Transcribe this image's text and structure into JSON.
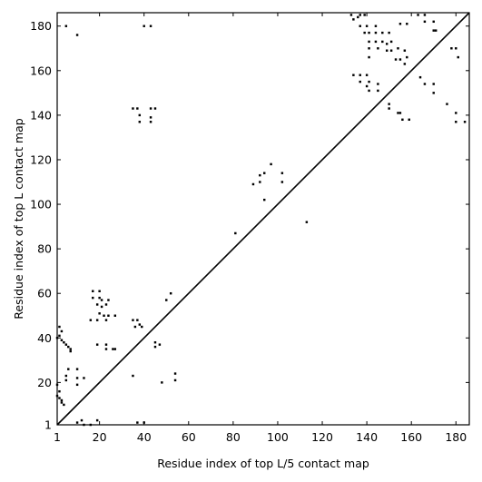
{
  "chart_data": {
    "type": "scatter",
    "title": "",
    "xlabel": "Residue index of top L/5 contact map",
    "ylabel": "Residue index of top L contact map",
    "xlim": [
      1,
      186
    ],
    "ylim": [
      1,
      186
    ],
    "xticks": [
      1,
      20,
      40,
      60,
      80,
      100,
      120,
      140,
      160,
      180
    ],
    "yticks": [
      1,
      20,
      40,
      60,
      80,
      100,
      120,
      140,
      160,
      180
    ],
    "grid": false,
    "diagonal": true,
    "marker_color": "#000000",
    "series": [
      {
        "points": [
          [
            5,
            180
          ],
          [
            10,
            176
          ],
          [
            40,
            180
          ],
          [
            43,
            180
          ],
          [
            35,
            143
          ],
          [
            37,
            143
          ],
          [
            38,
            140
          ],
          [
            38,
            137
          ],
          [
            43,
            143
          ],
          [
            45,
            143
          ],
          [
            43,
            139
          ],
          [
            43,
            137
          ],
          [
            1,
            40
          ],
          [
            2,
            41
          ],
          [
            3,
            39
          ],
          [
            4,
            38
          ],
          [
            5,
            37
          ],
          [
            6,
            36
          ],
          [
            7,
            35
          ],
          [
            7,
            34
          ],
          [
            2,
            45
          ],
          [
            3,
            43
          ],
          [
            1,
            19
          ],
          [
            2,
            16
          ],
          [
            1,
            14
          ],
          [
            2,
            13
          ],
          [
            3,
            12
          ],
          [
            3,
            11
          ],
          [
            4,
            10
          ],
          [
            5,
            21
          ],
          [
            5,
            23
          ],
          [
            6,
            26
          ],
          [
            10,
            22
          ],
          [
            10,
            19
          ],
          [
            13,
            22
          ],
          [
            10,
            26
          ],
          [
            17,
            61
          ],
          [
            17,
            58
          ],
          [
            20,
            61
          ],
          [
            20,
            58
          ],
          [
            21,
            57
          ],
          [
            19,
            55
          ],
          [
            21,
            54
          ],
          [
            23,
            55
          ],
          [
            20,
            51
          ],
          [
            22,
            50
          ],
          [
            24,
            50
          ],
          [
            24,
            57
          ],
          [
            27,
            50
          ],
          [
            16,
            48
          ],
          [
            19,
            48
          ],
          [
            23,
            48
          ],
          [
            19,
            37
          ],
          [
            23,
            37
          ],
          [
            23,
            35
          ],
          [
            26,
            35
          ],
          [
            27,
            35
          ],
          [
            35,
            48
          ],
          [
            37,
            48
          ],
          [
            36,
            45
          ],
          [
            38,
            46
          ],
          [
            39,
            45
          ],
          [
            45,
            38
          ],
          [
            45,
            36
          ],
          [
            47,
            37
          ],
          [
            35,
            23
          ],
          [
            48,
            20
          ],
          [
            50,
            57
          ],
          [
            52,
            60
          ],
          [
            54,
            24
          ],
          [
            54,
            21
          ],
          [
            10,
            2
          ],
          [
            12,
            3
          ],
          [
            13,
            1
          ],
          [
            16,
            1
          ],
          [
            19,
            3
          ],
          [
            37,
            2
          ],
          [
            40,
            2
          ],
          [
            81,
            87
          ],
          [
            89,
            109
          ],
          [
            92,
            110
          ],
          [
            92,
            113
          ],
          [
            94,
            102
          ],
          [
            94,
            114
          ],
          [
            97,
            118
          ],
          [
            102,
            114
          ],
          [
            102,
            110
          ],
          [
            113,
            92
          ],
          [
            133,
            185
          ],
          [
            136,
            184
          ],
          [
            137,
            185
          ],
          [
            139,
            185
          ],
          [
            134,
            183
          ],
          [
            137,
            180
          ],
          [
            140,
            180
          ],
          [
            144,
            180
          ],
          [
            139,
            177
          ],
          [
            141,
            177
          ],
          [
            144,
            177
          ],
          [
            147,
            177
          ],
          [
            150,
            177
          ],
          [
            141,
            173
          ],
          [
            144,
            173
          ],
          [
            147,
            173
          ],
          [
            149,
            172
          ],
          [
            151,
            173
          ],
          [
            141,
            170
          ],
          [
            145,
            170
          ],
          [
            149,
            169
          ],
          [
            151,
            169
          ],
          [
            154,
            170
          ],
          [
            141,
            166
          ],
          [
            153,
            165
          ],
          [
            155,
            165
          ],
          [
            158,
            166
          ],
          [
            157,
            163
          ],
          [
            157,
            169
          ],
          [
            134,
            158
          ],
          [
            137,
            158
          ],
          [
            137,
            155
          ],
          [
            140,
            158
          ],
          [
            141,
            155
          ],
          [
            140,
            153
          ],
          [
            141,
            151
          ],
          [
            145,
            154
          ],
          [
            145,
            151
          ],
          [
            150,
            145
          ],
          [
            150,
            143
          ],
          [
            154,
            141
          ],
          [
            155,
            141
          ],
          [
            156,
            138
          ],
          [
            159,
            138
          ],
          [
            155,
            181
          ],
          [
            158,
            181
          ],
          [
            163,
            185
          ],
          [
            166,
            185
          ],
          [
            166,
            182
          ],
          [
            170,
            182
          ],
          [
            170,
            178
          ],
          [
            171,
            178
          ],
          [
            164,
            157
          ],
          [
            166,
            154
          ],
          [
            170,
            154
          ],
          [
            170,
            150
          ],
          [
            176,
            145
          ],
          [
            178,
            170
          ],
          [
            180,
            170
          ],
          [
            181,
            166
          ],
          [
            180,
            141
          ],
          [
            180,
            137
          ],
          [
            184,
            137
          ]
        ]
      }
    ]
  }
}
